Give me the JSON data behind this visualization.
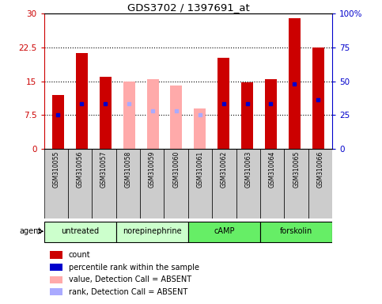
{
  "title": "GDS3702 / 1397691_at",
  "samples": [
    "GSM310055",
    "GSM310056",
    "GSM310057",
    "GSM310058",
    "GSM310059",
    "GSM310060",
    "GSM310061",
    "GSM310062",
    "GSM310063",
    "GSM310064",
    "GSM310065",
    "GSM310066"
  ],
  "bar_values": [
    12.0,
    21.2,
    16.0,
    null,
    null,
    null,
    null,
    20.2,
    14.8,
    15.4,
    29.0,
    22.5
  ],
  "bar_absent_values": [
    null,
    null,
    null,
    15.0,
    15.5,
    14.0,
    9.0,
    null,
    null,
    null,
    null,
    null
  ],
  "percentile_rank": [
    7.5,
    10.0,
    10.0,
    null,
    null,
    null,
    null,
    10.0,
    10.0,
    10.0,
    14.5,
    11.0
  ],
  "percentile_rank_absent": [
    null,
    null,
    null,
    10.0,
    8.5,
    8.5,
    7.5,
    null,
    null,
    null,
    null,
    null
  ],
  "bar_color": "#cc0000",
  "bar_absent_color": "#ffaaaa",
  "rank_color": "#0000cc",
  "rank_absent_color": "#aaaaff",
  "ylim_left": [
    0,
    30
  ],
  "ylim_right": [
    0,
    100
  ],
  "yticks_left": [
    0,
    7.5,
    15,
    22.5,
    30
  ],
  "yticks_right": [
    0,
    25,
    50,
    75,
    100
  ],
  "ytick_labels_left": [
    "0",
    "7.5",
    "15",
    "22.5",
    "30"
  ],
  "ytick_labels_right": [
    "0",
    "25",
    "50",
    "75",
    "100%"
  ],
  "bar_width": 0.5,
  "agent_groups": [
    {
      "label": "untreated",
      "start": 0,
      "end": 2,
      "color": "#ccffcc"
    },
    {
      "label": "norepinephrine",
      "start": 3,
      "end": 5,
      "color": "#ccffcc"
    },
    {
      "label": "cAMP",
      "start": 6,
      "end": 8,
      "color": "#66ee66"
    },
    {
      "label": "forskolin",
      "start": 9,
      "end": 11,
      "color": "#66ee66"
    }
  ],
  "legend_items": [
    {
      "label": "count",
      "color": "#cc0000"
    },
    {
      "label": "percentile rank within the sample",
      "color": "#0000cc"
    },
    {
      "label": "value, Detection Call = ABSENT",
      "color": "#ffaaaa"
    },
    {
      "label": "rank, Detection Call = ABSENT",
      "color": "#aaaaff"
    }
  ],
  "sample_bg": "#cccccc",
  "plot_bg": "#ffffff",
  "fig_bg": "#ffffff"
}
